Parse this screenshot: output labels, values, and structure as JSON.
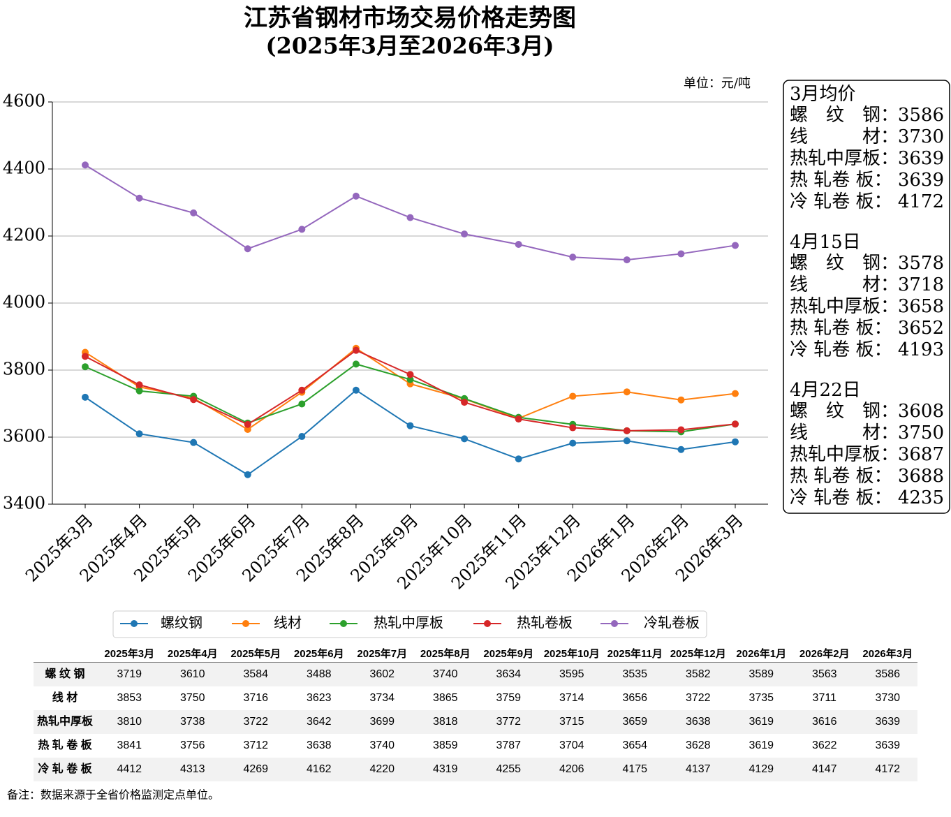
{
  "chart_data": {
    "type": "line",
    "title": "江苏省钢材市场交易价格走势图",
    "subtitle": "(2025年3月至2026年3月)",
    "unit": "单位：元/吨",
    "categories": [
      "2025年3月",
      "2025年4月",
      "2025年5月",
      "2025年6月",
      "2025年7月",
      "2025年8月",
      "2025年9月",
      "2025年10月",
      "2025年11月",
      "2025年12月",
      "2026年1月",
      "2026年2月",
      "2026年3月"
    ],
    "series": [
      {
        "name": "螺纹钢",
        "color": "#1f77b4",
        "values": [
          3719,
          3610,
          3584,
          3488,
          3602,
          3740,
          3634,
          3595,
          3535,
          3582,
          3589,
          3563,
          3586
        ]
      },
      {
        "name": "线材",
        "color": "#ff7f0e",
        "values": [
          3853,
          3750,
          3716,
          3623,
          3734,
          3865,
          3759,
          3714,
          3656,
          3722,
          3735,
          3711,
          3730
        ]
      },
      {
        "name": "热轧中厚板",
        "color": "#2ca02c",
        "values": [
          3810,
          3738,
          3722,
          3642,
          3699,
          3818,
          3772,
          3715,
          3659,
          3638,
          3619,
          3616,
          3639
        ]
      },
      {
        "name": "热轧卷板",
        "color": "#d62728",
        "values": [
          3841,
          3756,
          3712,
          3638,
          3740,
          3859,
          3787,
          3704,
          3654,
          3628,
          3619,
          3622,
          3639
        ]
      },
      {
        "name": "冷轧卷板",
        "color": "#9467bd",
        "values": [
          4412,
          4313,
          4269,
          4162,
          4220,
          4319,
          4255,
          4206,
          4175,
          4137,
          4129,
          4147,
          4172
        ]
      }
    ],
    "ylim": [
      3400,
      4600
    ],
    "yticks": [
      3400,
      3600,
      3800,
      4000,
      4200,
      4400,
      4600
    ],
    "grid": true,
    "table_row_labels": [
      "螺 纹 钢",
      "线 材",
      "热轧中厚板",
      "热 轧 卷 板",
      "冷 轧 卷 板"
    ],
    "info_box": [
      {
        "title": "3月均价",
        "items": [
          {
            "label": "螺　纹　钢：",
            "value": 3586
          },
          {
            "label": "线　　　材：",
            "value": 3730
          },
          {
            "label": "热轧中厚板：",
            "value": 3639
          },
          {
            "label": "热 轧卷 板：",
            "value": 3639
          },
          {
            "label": "冷 轧卷 板：",
            "value": 4172
          }
        ]
      },
      {
        "title": "4月15日",
        "items": [
          {
            "label": "螺　纹　钢：",
            "value": 3578
          },
          {
            "label": "线　　　材：",
            "value": 3718
          },
          {
            "label": "热轧中厚板：",
            "value": 3658
          },
          {
            "label": "热 轧卷 板：",
            "value": 3652
          },
          {
            "label": "冷 轧卷 板：",
            "value": 4193
          }
        ]
      },
      {
        "title": "4月22日",
        "items": [
          {
            "label": "螺　纹　钢：",
            "value": 3608
          },
          {
            "label": "线　　　材：",
            "value": 3750
          },
          {
            "label": "热轧中厚板：",
            "value": 3687
          },
          {
            "label": "热 轧卷 板：",
            "value": 3688
          },
          {
            "label": "冷 轧卷 板：",
            "value": 4235
          }
        ]
      }
    ],
    "note": "备注：数据来源于全省价格监测定点单位。"
  }
}
